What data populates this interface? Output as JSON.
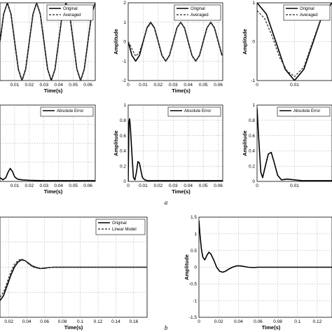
{
  "captions": [
    "a",
    "b"
  ],
  "chart_data": [
    {
      "type": "line",
      "xlabel": "Time(s)",
      "ylabel": "",
      "xlim": [
        0,
        0.065
      ],
      "ylim": [
        -1,
        1
      ],
      "xticks": [
        "0.01",
        "0.02",
        "0.03",
        "0.04",
        "0.05",
        "0.06"
      ],
      "yticks": [],
      "legend": "top-right",
      "series": [
        {
          "name": "Original",
          "style": "solid",
          "x": [
            0,
            0.0025,
            0.005,
            0.0075,
            0.01,
            0.0125,
            0.015,
            0.0175,
            0.02,
            0.0225,
            0.025,
            0.0275,
            0.03,
            0.0325,
            0.035,
            0.0375,
            0.04,
            0.0425,
            0.045,
            0.0475,
            0.05,
            0.0525,
            0.055,
            0.0575,
            0.06,
            0.0625,
            0.065
          ],
          "y": [
            0.0,
            0.71,
            1.0,
            0.71,
            0.0,
            -0.71,
            -1.0,
            -0.71,
            0.0,
            0.71,
            1.0,
            0.71,
            0.0,
            -0.71,
            -1.0,
            -0.71,
            0.0,
            0.71,
            1.0,
            0.71,
            0.0,
            -0.71,
            -1.0,
            -0.71,
            0.0,
            0.71,
            1.0
          ]
        },
        {
          "name": "Averaged",
          "style": "dashed",
          "x": [
            0,
            0.0025,
            0.005,
            0.0075,
            0.01,
            0.0125,
            0.015,
            0.0175,
            0.02,
            0.0225,
            0.025,
            0.0275,
            0.03,
            0.0325,
            0.035,
            0.0375,
            0.04,
            0.0425,
            0.045,
            0.0475,
            0.05,
            0.0525,
            0.055,
            0.0575,
            0.06,
            0.0625,
            0.065
          ],
          "y": [
            0.0,
            0.71,
            1.0,
            0.71,
            0.0,
            -0.71,
            -1.0,
            -0.71,
            0.0,
            0.71,
            1.0,
            0.71,
            0.0,
            -0.71,
            -1.0,
            -0.71,
            0.0,
            0.71,
            1.0,
            0.71,
            0.0,
            -0.71,
            -1.0,
            -0.71,
            0.0,
            0.71,
            1.0
          ]
        }
      ]
    },
    {
      "type": "line",
      "xlabel": "Time(s)",
      "ylabel": "Amplitude",
      "xlim": [
        0,
        0.063
      ],
      "ylim": [
        -2,
        2
      ],
      "xticks": [
        "0",
        "0.01",
        "0.02",
        "0.03",
        "0.04",
        "0.05",
        "0.06"
      ],
      "yticks": [
        "-2",
        "-1",
        "0",
        "1",
        "2"
      ],
      "legend": "top-right",
      "series": [
        {
          "name": "Original",
          "style": "solid",
          "x": [
            0,
            0.0025,
            0.005,
            0.0075,
            0.01,
            0.0125,
            0.015,
            0.0175,
            0.02,
            0.0225,
            0.025,
            0.0275,
            0.03,
            0.0325,
            0.035,
            0.0375,
            0.04,
            0.0425,
            0.045,
            0.0475,
            0.05,
            0.0525,
            0.055,
            0.0575,
            0.06,
            0.0625
          ],
          "y": [
            0.0,
            -0.71,
            -1.0,
            -0.71,
            0.0,
            0.71,
            1.0,
            0.71,
            0.0,
            -0.71,
            -1.0,
            -0.71,
            0.0,
            0.71,
            1.0,
            0.71,
            0.0,
            -0.71,
            -1.0,
            -0.71,
            0.0,
            0.71,
            1.0,
            0.71,
            0.0,
            -0.71
          ]
        },
        {
          "name": "Averaged",
          "style": "dashed",
          "x": [
            0,
            0.0015,
            0.003,
            0.005,
            0.0075,
            0.01,
            0.0125,
            0.015,
            0.0175,
            0.02,
            0.0225,
            0.025,
            0.0275,
            0.03,
            0.0325,
            0.035,
            0.0375,
            0.04,
            0.0425,
            0.045,
            0.0475,
            0.05,
            0.0525,
            0.055,
            0.0575,
            0.06,
            0.0625
          ],
          "y": [
            0.0,
            -0.2,
            -0.45,
            -0.75,
            -0.55,
            0.05,
            0.68,
            0.95,
            0.7,
            0.0,
            -0.71,
            -1.0,
            -0.71,
            0.0,
            0.71,
            1.0,
            0.71,
            0.0,
            -0.71,
            -1.0,
            -0.71,
            0.0,
            0.71,
            1.0,
            0.71,
            0.0,
            -0.71
          ]
        }
      ]
    },
    {
      "type": "line",
      "xlabel": "",
      "ylabel": "Amplitude",
      "xlim": [
        0,
        0.02
      ],
      "ylim": [
        -1,
        1
      ],
      "xticks": [
        "0",
        "0.01"
      ],
      "yticks": [
        "-1",
        "0",
        "1"
      ],
      "legend": "top-right",
      "series": [
        {
          "name": "Original",
          "style": "solid",
          "x": [
            0,
            0.0025,
            0.005,
            0.0075,
            0.01,
            0.0125,
            0.015,
            0.0175,
            0.02
          ],
          "y": [
            1.0,
            0.71,
            0.0,
            -0.71,
            -1.0,
            -0.71,
            0.0,
            0.71,
            1.0
          ]
        },
        {
          "name": "Averaged",
          "style": "dashed",
          "x": [
            0,
            0.002,
            0.004,
            0.006,
            0.008,
            0.01,
            0.0125,
            0.015,
            0.0175,
            0.02
          ],
          "y": [
            0.8,
            0.6,
            0.15,
            -0.4,
            -0.75,
            -0.9,
            -0.65,
            0.05,
            0.72,
            0.98
          ]
        }
      ]
    },
    {
      "type": "line",
      "xlabel": "Time(s)",
      "ylabel": "",
      "xlim": [
        0,
        0.065
      ],
      "ylim": [
        0,
        1
      ],
      "xticks": [
        "0.01",
        "0.02",
        "0.03",
        "0.04",
        "0.05",
        "0.06"
      ],
      "yticks": [],
      "legend": "top-right",
      "series": [
        {
          "name": "Absolute Error",
          "style": "solid",
          "x": [
            0,
            0.002,
            0.004,
            0.0055,
            0.007,
            0.0085,
            0.01,
            0.012,
            0.015,
            0.02,
            0.03,
            0.04,
            0.05,
            0.06,
            0.065
          ],
          "y": [
            0.05,
            0.02,
            0.05,
            0.12,
            0.17,
            0.13,
            0.06,
            0.03,
            0.02,
            0.015,
            0.01,
            0.01,
            0.01,
            0.01,
            0.01
          ]
        }
      ]
    },
    {
      "type": "line",
      "xlabel": "Time(s)",
      "ylabel": "Amplitude",
      "xlim": [
        0,
        0.063
      ],
      "ylim": [
        0,
        1
      ],
      "xticks": [
        "0",
        "0.01",
        "0.02",
        "0.03",
        "0.04",
        "0.05",
        "0.06"
      ],
      "yticks": [
        "0",
        "0.2",
        "0.4",
        "0.6",
        "0.8",
        "1"
      ],
      "legend": "top-right",
      "series": [
        {
          "name": "Absolute Error",
          "style": "solid",
          "x": [
            0,
            0.0005,
            0.001,
            0.0015,
            0.0025,
            0.0035,
            0.0045,
            0.0055,
            0.0065,
            0.0075,
            0.0085,
            0.0095,
            0.011,
            0.013,
            0.016,
            0.02,
            0.03,
            0.04,
            0.05,
            0.06,
            0.063
          ],
          "y": [
            0.0,
            0.78,
            0.82,
            0.7,
            0.35,
            0.05,
            0.02,
            0.12,
            0.26,
            0.24,
            0.14,
            0.05,
            0.02,
            0.01,
            0.01,
            0.01,
            0.01,
            0.01,
            0.01,
            0.01,
            0.01
          ]
        }
      ]
    },
    {
      "type": "line",
      "xlabel": "",
      "ylabel": "Amplitude",
      "xlim": [
        0,
        0.02
      ],
      "ylim": [
        0,
        1
      ],
      "xticks": [
        "0",
        "0.01"
      ],
      "yticks": [
        "0",
        "0.2",
        "0.4",
        "0.6",
        "0.8",
        "1"
      ],
      "legend": "top-right",
      "series": [
        {
          "name": "Absolute Error",
          "style": "solid",
          "x": [
            0,
            0.0004,
            0.001,
            0.0015,
            0.0022,
            0.003,
            0.0038,
            0.0045,
            0.0055,
            0.0065,
            0.008,
            0.01,
            0.012,
            0.015,
            0.02
          ],
          "y": [
            0.96,
            0.6,
            0.12,
            0.05,
            0.2,
            0.36,
            0.38,
            0.26,
            0.08,
            0.02,
            0.03,
            0.02,
            0.01,
            0.01,
            0.01
          ]
        }
      ]
    },
    {
      "type": "line",
      "xlabel": "Time(s)",
      "ylabel": "",
      "xlim": [
        0.01,
        0.175
      ],
      "ylim": [
        -1.5,
        1.5
      ],
      "xticks": [
        "0.02",
        "0.04",
        "0.06",
        "0.08",
        "0.1",
        "0.12",
        "0.14",
        "0.16"
      ],
      "yticks": [],
      "legend": "top-right",
      "series": [
        {
          "name": "Original",
          "style": "solid",
          "x": [
            0.01,
            0.014,
            0.018,
            0.022,
            0.026,
            0.03,
            0.034,
            0.038,
            0.042,
            0.046,
            0.05,
            0.055,
            0.06,
            0.065,
            0.07,
            0.08,
            0.1,
            0.12,
            0.14,
            0.16,
            0.175
          ],
          "y": [
            -1.0,
            -0.85,
            -0.55,
            -0.25,
            0.0,
            0.15,
            0.22,
            0.2,
            0.12,
            0.04,
            0.0,
            -0.04,
            -0.03,
            -0.01,
            0.0,
            0.0,
            0.0,
            0.0,
            0.0,
            0.0,
            0.0
          ]
        },
        {
          "name": "Linear Model",
          "style": "dashed",
          "x": [
            0.01,
            0.014,
            0.018,
            0.022,
            0.026,
            0.03,
            0.034,
            0.038,
            0.042,
            0.046,
            0.05,
            0.055,
            0.06,
            0.065,
            0.07,
            0.08,
            0.1,
            0.12,
            0.14,
            0.16,
            0.175
          ],
          "y": [
            -0.9,
            -0.75,
            -0.45,
            -0.15,
            0.08,
            0.2,
            0.25,
            0.2,
            0.1,
            0.02,
            -0.02,
            -0.04,
            -0.02,
            -0.01,
            0.0,
            0.0,
            0.0,
            0.0,
            0.0,
            0.0,
            0.0
          ]
        }
      ]
    },
    {
      "type": "line",
      "xlabel": "Time(s)",
      "ylabel": "Amplitude",
      "xlim": [
        0,
        0.135
      ],
      "ylim": [
        -1.5,
        1.5
      ],
      "xticks": [
        "0",
        "0.02",
        "0.04",
        "0.06",
        "0.08",
        "0.1",
        "0.12"
      ],
      "yticks": [
        "-1.5",
        "-1",
        "-0.5",
        "0",
        "0.5",
        "1",
        "1.5"
      ],
      "legend": "top-right",
      "series": [
        {
          "name": "",
          "style": "solid",
          "x": [
            0,
            0.001,
            0.0025,
            0.004,
            0.006,
            0.008,
            0.01,
            0.012,
            0.015,
            0.018,
            0.021,
            0.024,
            0.027,
            0.03,
            0.034,
            0.038,
            0.042,
            0.046,
            0.05,
            0.055,
            0.06,
            0.07,
            0.08,
            0.1,
            0.12,
            0.135
          ],
          "y": [
            1.4,
            1.0,
            0.55,
            0.3,
            0.22,
            0.35,
            0.45,
            0.4,
            0.22,
            0.0,
            -0.12,
            -0.15,
            -0.12,
            -0.06,
            0.0,
            0.04,
            0.04,
            0.02,
            0.0,
            -0.01,
            0.0,
            0.0,
            0.0,
            0.0,
            0.0,
            0.0
          ]
        }
      ]
    }
  ]
}
